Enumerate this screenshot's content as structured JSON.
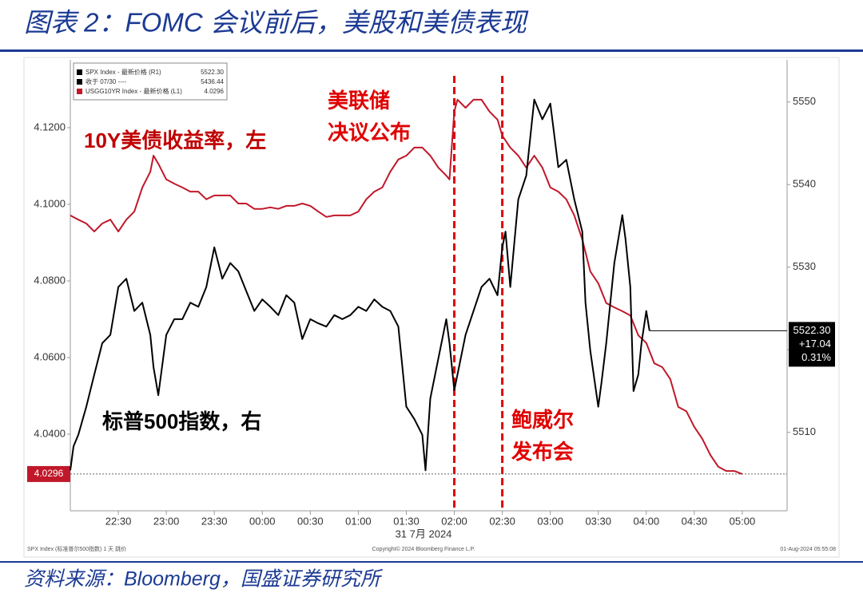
{
  "chart_data": {
    "type": "line",
    "title": "图表 2：FOMC 会议前后，美股和美债表现",
    "source": "资料来源：Bloomberg，国盛证券研究所",
    "x_label": "31 7月 2024",
    "footer": [
      "SPX Index (标准普尔500指数) 1 天  跳价",
      "Copyright© 2024 Bloomberg Finance L.P.",
      "01-Aug-2024 05:55:08"
    ],
    "legend_box": [
      [
        "SPX Index - 最新价格 (R1)",
        "5522.30"
      ],
      [
        "收于 07/30 ----",
        "5436.44"
      ],
      [
        "USGG10YR Index - 最新价格 (L1)",
        "4.0296"
      ]
    ],
    "annotations": [
      {
        "lines": [
          "10Y美债收益率，左"
        ],
        "color": "#c00000"
      },
      {
        "lines": [
          "标普500指数，右"
        ],
        "color": "#000000"
      },
      {
        "lines": [
          "美联储",
          "决议公布"
        ],
        "color": "#e00000"
      },
      {
        "lines": [
          "鲍威尔",
          "发布会"
        ],
        "color": "#e00000"
      }
    ],
    "event_lines": [
      "02:00",
      "02:30"
    ],
    "event_color": "#e00000",
    "xlim": [
      "22:00",
      "05:28"
    ],
    "xticks": [
      "22:30",
      "23:00",
      "23:30",
      "00:00",
      "00:30",
      "01:00",
      "01:30",
      "02:00",
      "02:30",
      "03:00",
      "03:30",
      "04:00",
      "04:30",
      "05:00"
    ],
    "ylim": [
      4.02,
      4.1377
    ],
    "yticks": [
      {
        "value": 4.04,
        "label": "4.0400"
      },
      {
        "value": 4.06,
        "label": "4.0600"
      },
      {
        "value": 4.08,
        "label": "4.0800"
      },
      {
        "value": 4.1,
        "label": "4.1000"
      },
      {
        "value": 4.12,
        "label": "4.1200"
      }
    ],
    "y2lim": [
      5500.5,
      5555.1
    ],
    "y2ticks": [
      5510,
      5520,
      5530,
      5540,
      5550
    ],
    "series": [
      {
        "name": "USGG10YR Index",
        "color": "#c0182a",
        "axis": "y",
        "x": [
          "22:00",
          "22:05",
          "22:10",
          "22:15",
          "22:20",
          "22:25",
          "22:30",
          "22:35",
          "22:40",
          "22:45",
          "22:50",
          "22:52",
          "22:55",
          "23:00",
          "23:05",
          "23:10",
          "23:15",
          "23:20",
          "23:25",
          "23:30",
          "23:35",
          "23:40",
          "23:45",
          "23:50",
          "23:55",
          "00:00",
          "00:05",
          "00:10",
          "00:15",
          "00:20",
          "00:25",
          "00:30",
          "00:35",
          "00:40",
          "00:45",
          "00:50",
          "00:55",
          "01:00",
          "01:05",
          "01:10",
          "01:15",
          "01:20",
          "01:25",
          "01:30",
          "01:35",
          "01:40",
          "01:45",
          "01:50",
          "01:55",
          "01:57",
          "02:00",
          "02:02",
          "02:07",
          "02:12",
          "02:17",
          "02:22",
          "02:27",
          "02:30",
          "02:35",
          "02:40",
          "02:45",
          "02:50",
          "02:55",
          "03:00",
          "03:05",
          "03:10",
          "03:15",
          "03:20",
          "03:25",
          "03:30",
          "03:35",
          "03:40",
          "03:45",
          "03:50",
          "03:55",
          "04:00",
          "04:05",
          "04:10",
          "04:15",
          "04:20",
          "04:25",
          "04:30",
          "04:35",
          "04:40",
          "04:45",
          "04:50",
          "04:55",
          "05:00"
        ],
        "values": [
          4.0971,
          4.096,
          4.095,
          4.0929,
          4.095,
          4.096,
          4.0929,
          4.096,
          4.0981,
          4.1044,
          4.1085,
          4.1127,
          4.1106,
          4.1065,
          4.1054,
          4.1044,
          4.1033,
          4.1033,
          4.1013,
          4.1023,
          4.1023,
          4.1023,
          4.1002,
          4.1002,
          4.0988,
          4.0988,
          4.0992,
          4.0988,
          4.0996,
          4.0996,
          4.1002,
          4.0996,
          4.0981,
          4.0967,
          4.0971,
          4.0971,
          4.0971,
          4.0981,
          4.1013,
          4.1033,
          4.1044,
          4.1085,
          4.1117,
          4.1127,
          4.1148,
          4.1148,
          4.1127,
          4.1096,
          4.1075,
          4.1065,
          4.1242,
          4.1273,
          4.1252,
          4.1273,
          4.1273,
          4.1242,
          4.1221,
          4.1179,
          4.1148,
          4.1127,
          4.1096,
          4.1127,
          4.1096,
          4.1044,
          4.1033,
          4.1013,
          4.0971,
          4.0908,
          4.0825,
          4.0794,
          4.0742,
          4.0731,
          4.0721,
          4.071,
          4.0658,
          4.0638,
          4.0585,
          4.0575,
          4.0544,
          4.0471,
          4.046,
          4.0419,
          4.0388,
          4.0346,
          4.0315,
          4.0304,
          4.0304,
          4.0296
        ],
        "last_label": "4.0296"
      },
      {
        "name": "SPX Index",
        "color": "#000000",
        "axis": "y2",
        "x": [
          "22:00",
          "22:02",
          "22:05",
          "22:10",
          "22:15",
          "22:20",
          "22:25",
          "22:30",
          "22:35",
          "22:40",
          "22:45",
          "22:50",
          "22:52",
          "22:55",
          "23:00",
          "23:05",
          "23:10",
          "23:15",
          "23:20",
          "23:25",
          "23:30",
          "23:35",
          "23:40",
          "23:45",
          "23:50",
          "23:55",
          "00:00",
          "00:05",
          "00:10",
          "00:15",
          "00:20",
          "00:25",
          "00:30",
          "00:35",
          "00:40",
          "00:45",
          "00:50",
          "00:55",
          "01:00",
          "01:05",
          "01:10",
          "01:15",
          "01:20",
          "01:25",
          "01:30",
          "01:35",
          "01:40",
          "01:42",
          "01:45",
          "01:50",
          "01:55",
          "01:57",
          "02:00",
          "02:02",
          "02:07",
          "02:12",
          "02:17",
          "02:22",
          "02:27",
          "02:30",
          "02:32",
          "02:35",
          "02:40",
          "02:45",
          "02:50",
          "02:55",
          "03:00",
          "03:05",
          "03:10",
          "03:15",
          "03:20",
          "03:22",
          "03:25",
          "03:30",
          "03:32",
          "03:35",
          "03:40",
          "03:45",
          "03:47",
          "03:50",
          "03:52",
          "03:55",
          "03:57",
          "04:00",
          "04:02"
        ],
        "values": [
          5505.4,
          5508.3,
          5509.7,
          5513.1,
          5517.0,
          5520.8,
          5521.8,
          5527.6,
          5528.6,
          5524.7,
          5525.7,
          5521.8,
          5517.9,
          5514.5,
          5521.8,
          5523.7,
          5523.7,
          5525.7,
          5525.2,
          5527.6,
          5532.4,
          5528.6,
          5530.5,
          5529.5,
          5527.1,
          5524.7,
          5526.1,
          5525.2,
          5524.2,
          5526.6,
          5525.7,
          5521.3,
          5523.7,
          5523.2,
          5522.8,
          5524.2,
          5523.7,
          5524.2,
          5525.2,
          5524.7,
          5526.1,
          5525.2,
          5524.7,
          5522.8,
          5513.1,
          5511.6,
          5509.7,
          5505.4,
          5514.1,
          5518.9,
          5523.7,
          5520.8,
          5515.1,
          5517.0,
          5521.8,
          5524.7,
          5527.6,
          5528.6,
          5526.6,
          5532.4,
          5534.3,
          5527.6,
          5538.2,
          5541.1,
          5550.3,
          5547.9,
          5549.8,
          5542.1,
          5543.0,
          5538.2,
          5534.3,
          5525.7,
          5519.9,
          5513.1,
          5516.0,
          5520.8,
          5530.5,
          5536.3,
          5533.4,
          5527.6,
          5515.0,
          5517.0,
          5520.8,
          5524.7,
          5522.3
        ],
        "last_label": "5522.30",
        "change": "+17.04",
        "change_pct": "0.31%"
      }
    ]
  }
}
